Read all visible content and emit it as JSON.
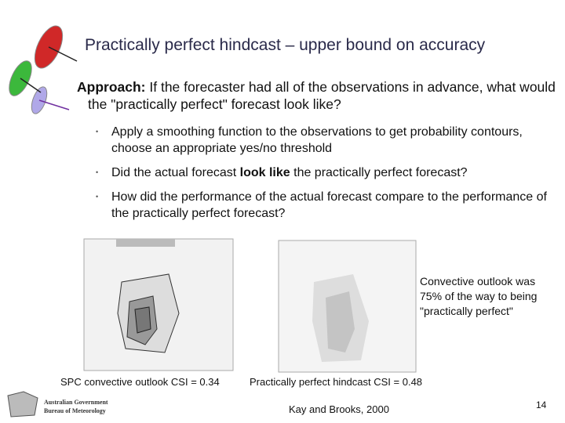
{
  "title": "Practically perfect hindcast – upper bound on accuracy",
  "approach": {
    "label": "Approach:",
    "text": "If the forecaster had all of the observations in advance, what would the \"practically perfect\" forecast look like?"
  },
  "bullets": [
    [
      "Apply a smoothing function to the observations to get probability contours, choose an appropriate yes/no threshold"
    ],
    [
      "Did the actual forecast ",
      "look like",
      " the practically perfect forecast?"
    ],
    [
      "How did the performance of the actual forecast compare to the performance of the practically perfect forecast?"
    ]
  ],
  "figures": [
    {
      "caption": "SPC convective outlook CSI = 0.34"
    },
    {
      "caption": "Practically perfect hindcast CSI = 0.48"
    }
  ],
  "note": "Convective outlook was 75% of the way to being \"practically perfect\"",
  "citation": "Kay and Brooks, 2000",
  "footer": {
    "logo_line1": "Australian Government",
    "logo_line2": "Bureau of Meteorology",
    "page_number": "14"
  }
}
